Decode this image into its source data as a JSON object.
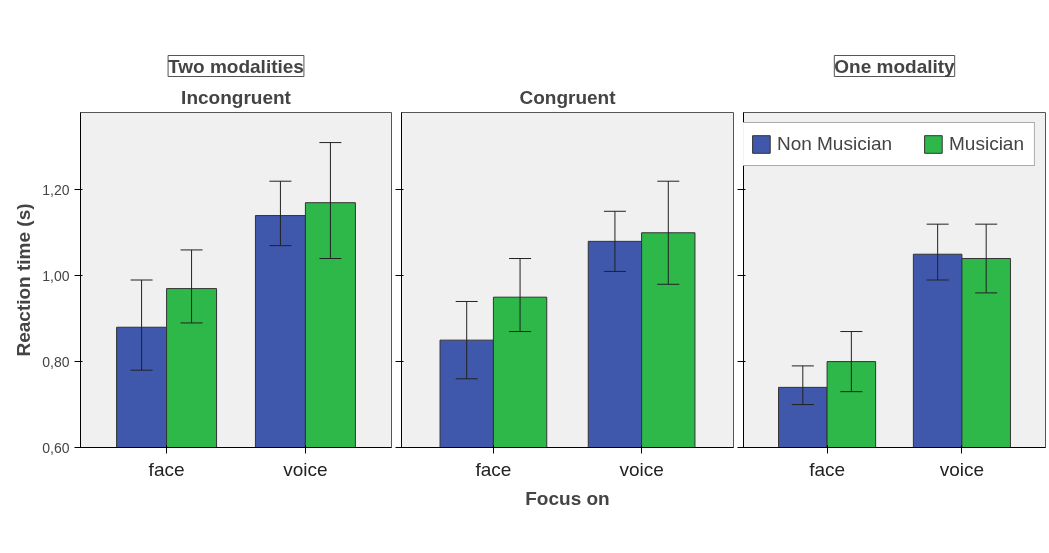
{
  "chart_data": [
    {
      "type": "bar",
      "title": "Incongruent",
      "ylabel": "Reaction time (s)",
      "annotations": [
        "Two modalities"
      ],
      "categories": [
        "face",
        "voice"
      ],
      "ylim": [
        0.6,
        1.38
      ],
      "yticks": [
        {
          "value": 0.6,
          "label": "0,60"
        },
        {
          "value": 0.8,
          "label": "0,80"
        },
        {
          "value": 1.0,
          "label": "1,00"
        },
        {
          "value": 1.2,
          "label": "1,20"
        }
      ],
      "grid": false,
      "legend": false,
      "series": [
        {
          "color": "#3f58ab",
          "values": [
            0.88,
            1.14
          ],
          "errors": [
            [
              0.78,
              0.99
            ],
            [
              1.07,
              1.22
            ]
          ]
        },
        {
          "color": "#2eb84a",
          "values": [
            0.97,
            1.17
          ],
          "errors": [
            [
              0.89,
              1.06
            ],
            [
              1.04,
              1.31
            ]
          ]
        }
      ]
    },
    {
      "type": "bar",
      "title": "Congruent",
      "xlabel": "Focus on",
      "categories": [
        "face",
        "voice"
      ],
      "ylim": [
        0.6,
        1.38
      ],
      "tick_labels": "x",
      "yticks": [
        {
          "value": 0.6,
          "label": null
        },
        {
          "value": 0.8,
          "label": null
        },
        {
          "value": 1.0,
          "label": null
        },
        {
          "value": 1.2,
          "label": null
        }
      ],
      "grid": false,
      "legend": false,
      "series": [
        {
          "color": "#3f58ab",
          "values": [
            0.85,
            1.08
          ],
          "errors": [
            [
              0.76,
              0.94
            ],
            [
              1.01,
              1.15
            ]
          ]
        },
        {
          "color": "#2eb84a",
          "values": [
            0.95,
            1.1
          ],
          "errors": [
            [
              0.87,
              1.04
            ],
            [
              0.98,
              1.22
            ]
          ]
        }
      ]
    },
    {
      "type": "bar",
      "annotations": [
        "One modality"
      ],
      "categories": [
        "face",
        "voice"
      ],
      "ylim": [
        0.6,
        1.38
      ],
      "tick_labels": "x",
      "yticks": [
        {
          "value": 0.6,
          "label": null
        },
        {
          "value": 0.8,
          "label": null
        },
        {
          "value": 1.0,
          "label": null
        },
        {
          "value": 1.2,
          "label": null
        }
      ],
      "grid": false,
      "legend": "top right",
      "series": [
        {
          "name": "Non Musician",
          "color": "#3f58ab",
          "values": [
            0.74,
            1.05
          ],
          "errors": [
            [
              0.7,
              0.79
            ],
            [
              0.99,
              1.12
            ]
          ]
        },
        {
          "name": "Musician",
          "color": "#2eb84a",
          "values": [
            0.8,
            1.04
          ],
          "errors": [
            [
              0.73,
              0.87
            ],
            [
              0.96,
              1.12
            ]
          ]
        }
      ]
    }
  ]
}
